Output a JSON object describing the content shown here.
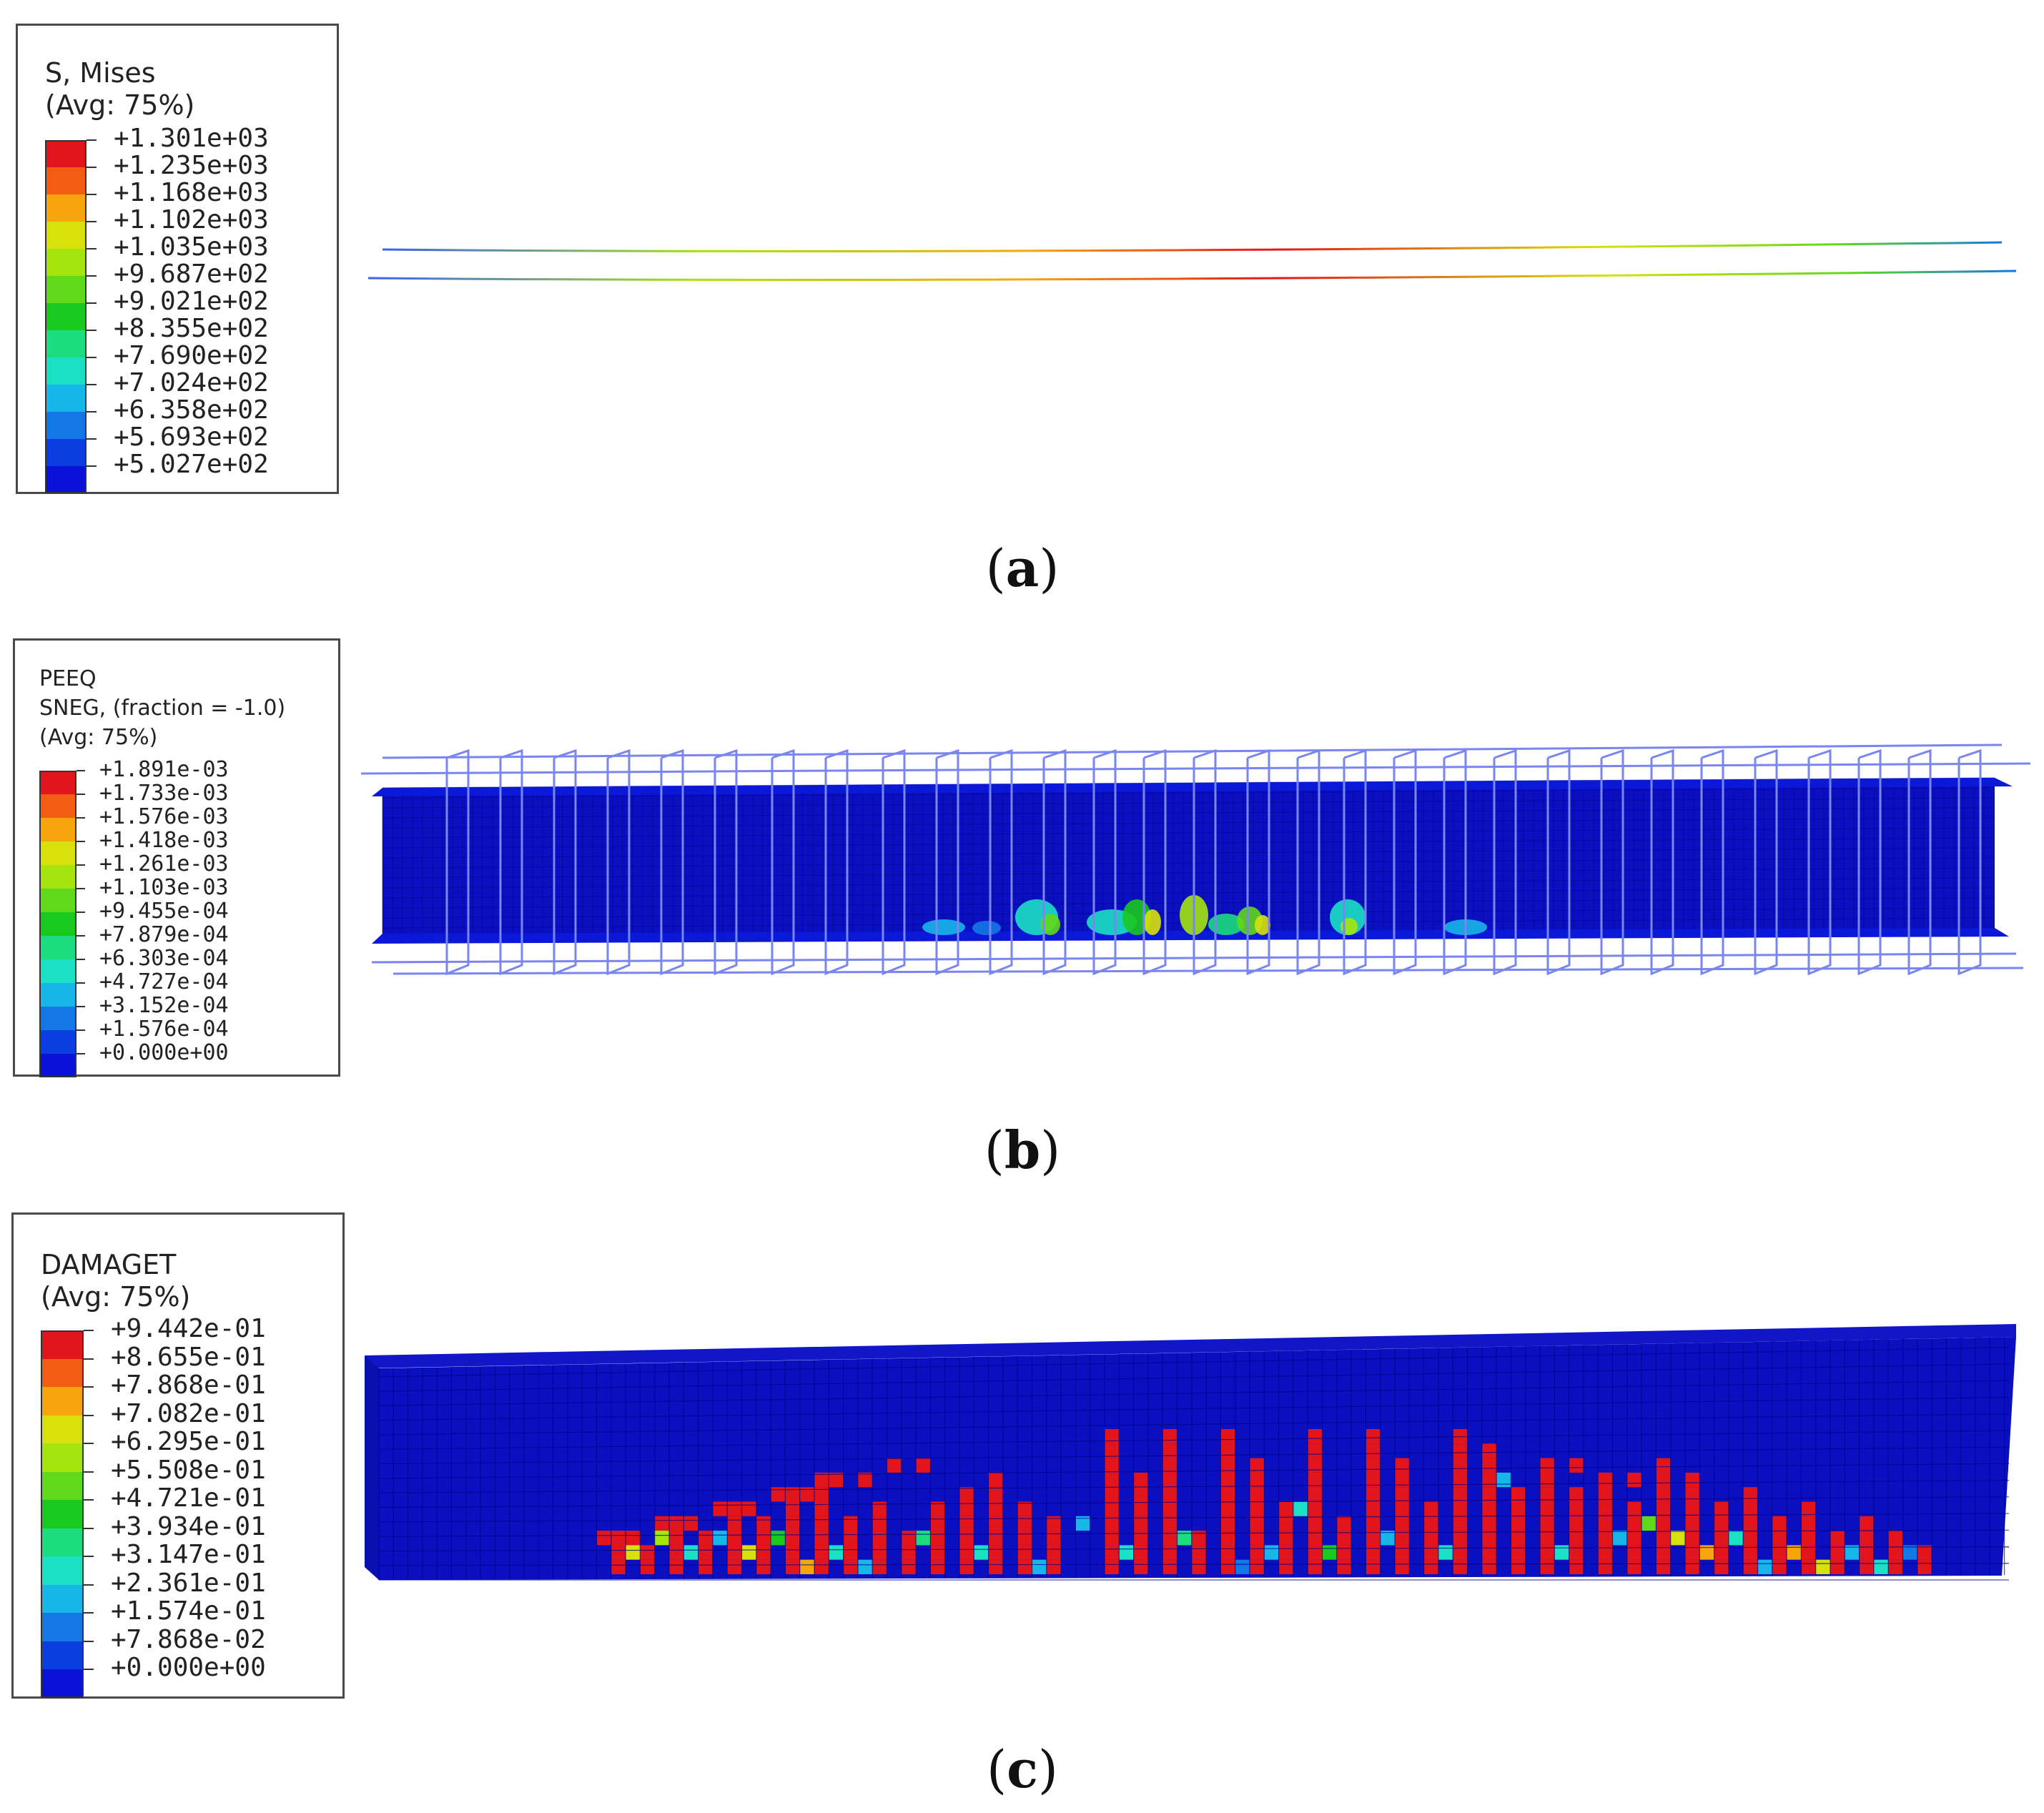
{
  "panels": [
    {
      "id": "a",
      "caption_letter": "a",
      "legend": {
        "title_lines": [
          "S, Mises",
          "(Avg: 75%)"
        ],
        "values": [
          "+1.301e+03",
          "+1.235e+03",
          "+1.168e+03",
          "+1.102e+03",
          "+1.035e+03",
          "+9.687e+02",
          "+9.021e+02",
          "+8.355e+02",
          "+7.690e+02",
          "+7.024e+02",
          "+6.358e+02",
          "+5.693e+02",
          "+5.027e+02"
        ]
      }
    },
    {
      "id": "b",
      "caption_letter": "b",
      "legend": {
        "title_lines": [
          "PEEQ",
          "SNEG, (fraction = -1.0)",
          "(Avg: 75%)"
        ],
        "values": [
          "+1.891e-03",
          "+1.733e-03",
          "+1.576e-03",
          "+1.418e-03",
          "+1.261e-03",
          "+1.103e-03",
          "+9.455e-04",
          "+7.879e-04",
          "+6.303e-04",
          "+4.727e-04",
          "+3.152e-04",
          "+1.576e-04",
          "+0.000e+00"
        ]
      }
    },
    {
      "id": "c",
      "caption_letter": "c",
      "legend": {
        "title_lines": [
          "DAMAGET",
          "(Avg: 75%)"
        ],
        "values": [
          "+9.442e-01",
          "+8.655e-01",
          "+7.868e-01",
          "+7.082e-01",
          "+6.295e-01",
          "+5.508e-01",
          "+4.721e-01",
          "+3.934e-01",
          "+3.147e-01",
          "+2.361e-01",
          "+1.574e-01",
          "+7.868e-02",
          "+0.000e+00"
        ]
      }
    }
  ],
  "colormap": [
    "#e3151c",
    "#f25c13",
    "#f7a50d",
    "#d8e10c",
    "#a6e40f",
    "#60d81c",
    "#19c91f",
    "#1bdc7e",
    "#1ce0c4",
    "#17b6e8",
    "#1378e6",
    "#0b3ee0",
    "#0a12d8"
  ],
  "model_colors": {
    "base_blue": "#0a10c0",
    "mesh_line": "#00008a",
    "rebar_wire": "#7a86f0"
  }
}
